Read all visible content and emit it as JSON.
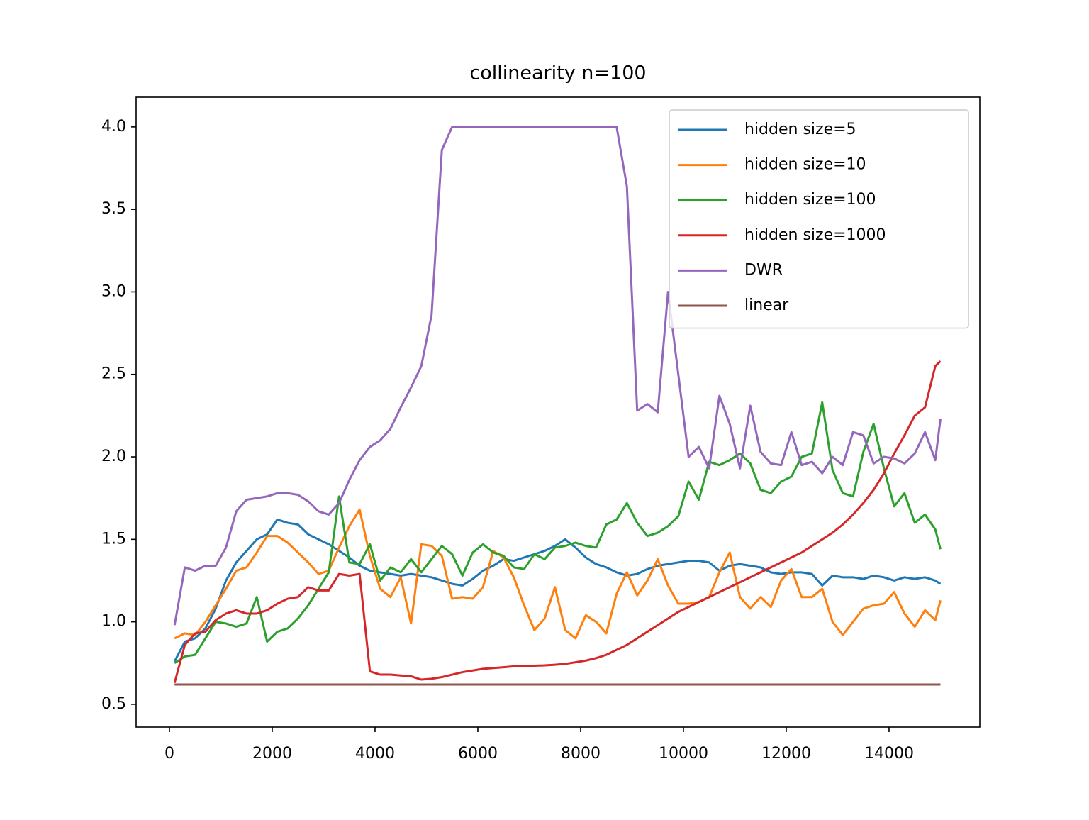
{
  "chart_data": {
    "type": "line",
    "title": "collinearity n=100",
    "x": [
      100,
      300,
      500,
      700,
      900,
      1100,
      1300,
      1500,
      1700,
      1900,
      2100,
      2300,
      2500,
      2700,
      2900,
      3100,
      3300,
      3500,
      3700,
      3900,
      4100,
      4300,
      4500,
      4700,
      4900,
      5100,
      5300,
      5500,
      5700,
      5900,
      6100,
      6300,
      6500,
      6700,
      6900,
      7100,
      7300,
      7500,
      7700,
      7900,
      8100,
      8300,
      8500,
      8700,
      8900,
      9100,
      9300,
      9500,
      9700,
      9900,
      10100,
      10300,
      10500,
      10700,
      10900,
      11100,
      11300,
      11500,
      11700,
      11900,
      12100,
      12300,
      12500,
      12700,
      12900,
      13100,
      13300,
      13500,
      13700,
      13900,
      14100,
      14300,
      14500,
      14700,
      14900,
      15000
    ],
    "series": [
      {
        "name": "hidden size=5",
        "color": "#1f77b4",
        "values": [
          0.76,
          0.88,
          0.9,
          0.96,
          1.08,
          1.25,
          1.36,
          1.43,
          1.5,
          1.53,
          1.62,
          1.6,
          1.59,
          1.53,
          1.5,
          1.47,
          1.43,
          1.39,
          1.34,
          1.31,
          1.3,
          1.29,
          1.28,
          1.29,
          1.28,
          1.27,
          1.25,
          1.23,
          1.22,
          1.26,
          1.31,
          1.34,
          1.38,
          1.37,
          1.39,
          1.41,
          1.43,
          1.46,
          1.5,
          1.45,
          1.39,
          1.35,
          1.33,
          1.3,
          1.28,
          1.29,
          1.32,
          1.34,
          1.35,
          1.36,
          1.37,
          1.37,
          1.36,
          1.31,
          1.34,
          1.35,
          1.34,
          1.33,
          1.3,
          1.29,
          1.3,
          1.3,
          1.29,
          1.22,
          1.28,
          1.27,
          1.27,
          1.26,
          1.28,
          1.27,
          1.25,
          1.27,
          1.26,
          1.27,
          1.25,
          1.23
        ]
      },
      {
        "name": "hidden size=10",
        "color": "#ff7f0e",
        "values": [
          0.9,
          0.93,
          0.92,
          1.0,
          1.1,
          1.2,
          1.31,
          1.33,
          1.42,
          1.52,
          1.52,
          1.48,
          1.42,
          1.36,
          1.29,
          1.31,
          1.45,
          1.58,
          1.68,
          1.4,
          1.2,
          1.15,
          1.27,
          0.99,
          1.47,
          1.46,
          1.4,
          1.14,
          1.15,
          1.14,
          1.21,
          1.43,
          1.39,
          1.27,
          1.1,
          0.95,
          1.02,
          1.21,
          0.95,
          0.9,
          1.04,
          1.0,
          0.93,
          1.17,
          1.3,
          1.16,
          1.25,
          1.38,
          1.22,
          1.11,
          1.11,
          1.12,
          1.15,
          1.3,
          1.42,
          1.15,
          1.08,
          1.15,
          1.09,
          1.25,
          1.32,
          1.15,
          1.15,
          1.2,
          1.0,
          0.92,
          1.0,
          1.08,
          1.1,
          1.11,
          1.18,
          1.05,
          0.97,
          1.07,
          1.01,
          1.13
        ]
      },
      {
        "name": "hidden size=100",
        "color": "#2ca02c",
        "values": [
          0.75,
          0.79,
          0.8,
          0.9,
          1.0,
          0.99,
          0.97,
          0.99,
          1.15,
          0.88,
          0.94,
          0.96,
          1.02,
          1.1,
          1.2,
          1.3,
          1.76,
          1.36,
          1.35,
          1.47,
          1.25,
          1.33,
          1.3,
          1.38,
          1.3,
          1.38,
          1.46,
          1.41,
          1.28,
          1.42,
          1.47,
          1.42,
          1.4,
          1.33,
          1.32,
          1.41,
          1.38,
          1.45,
          1.46,
          1.48,
          1.46,
          1.45,
          1.59,
          1.62,
          1.72,
          1.6,
          1.52,
          1.54,
          1.58,
          1.64,
          1.85,
          1.74,
          1.97,
          1.95,
          1.98,
          2.02,
          1.96,
          1.8,
          1.78,
          1.85,
          1.88,
          2.0,
          2.02,
          2.33,
          1.92,
          1.78,
          1.76,
          2.03,
          2.2,
          1.93,
          1.7,
          1.78,
          1.6,
          1.65,
          1.56,
          1.44
        ]
      },
      {
        "name": "hidden size=1000",
        "color": "#d62728",
        "values": [
          0.63,
          0.86,
          0.93,
          0.94,
          1.01,
          1.05,
          1.07,
          1.05,
          1.05,
          1.07,
          1.11,
          1.14,
          1.15,
          1.21,
          1.19,
          1.19,
          1.29,
          1.28,
          1.29,
          0.7,
          0.68,
          0.68,
          0.675,
          0.67,
          0.65,
          0.655,
          0.665,
          0.68,
          0.695,
          0.705,
          0.715,
          0.72,
          0.725,
          0.73,
          0.732,
          0.734,
          0.736,
          0.74,
          0.745,
          0.755,
          0.765,
          0.78,
          0.8,
          0.83,
          0.86,
          0.9,
          0.94,
          0.98,
          1.02,
          1.06,
          1.09,
          1.12,
          1.15,
          1.18,
          1.21,
          1.24,
          1.27,
          1.3,
          1.33,
          1.36,
          1.39,
          1.42,
          1.46,
          1.5,
          1.54,
          1.59,
          1.65,
          1.72,
          1.8,
          1.9,
          2.02,
          2.13,
          2.25,
          2.3,
          2.55,
          2.58
        ]
      },
      {
        "name": "DWR",
        "color": "#9467bd",
        "values": [
          0.98,
          1.33,
          1.31,
          1.34,
          1.34,
          1.45,
          1.67,
          1.74,
          1.75,
          1.76,
          1.78,
          1.78,
          1.77,
          1.73,
          1.67,
          1.65,
          1.72,
          1.86,
          1.98,
          2.06,
          2.1,
          2.17,
          2.3,
          2.42,
          2.55,
          2.86,
          3.86,
          4.0,
          4.0,
          4.0,
          4.0,
          4.0,
          4.0,
          4.0,
          4.0,
          4.0,
          4.0,
          4.0,
          4.0,
          4.0,
          4.0,
          4.0,
          4.0,
          4.0,
          3.64,
          2.28,
          2.32,
          2.27,
          3.0,
          2.5,
          2.0,
          2.06,
          1.93,
          2.37,
          2.2,
          1.93,
          2.31,
          2.03,
          1.96,
          1.95,
          2.15,
          1.95,
          1.97,
          1.9,
          2.0,
          1.95,
          2.15,
          2.13,
          1.96,
          2.0,
          1.99,
          1.96,
          2.02,
          2.15,
          1.98,
          2.23
        ]
      },
      {
        "name": "linear",
        "color": "#8c564b",
        "values": [
          0.62,
          0.62,
          0.62,
          0.62,
          0.62,
          0.62,
          0.62,
          0.62,
          0.62,
          0.62,
          0.62,
          0.62,
          0.62,
          0.62,
          0.62,
          0.62,
          0.62,
          0.62,
          0.62,
          0.62,
          0.62,
          0.62,
          0.62,
          0.62,
          0.62,
          0.62,
          0.62,
          0.62,
          0.62,
          0.62,
          0.62,
          0.62,
          0.62,
          0.62,
          0.62,
          0.62,
          0.62,
          0.62,
          0.62,
          0.62,
          0.62,
          0.62,
          0.62,
          0.62,
          0.62,
          0.62,
          0.62,
          0.62,
          0.62,
          0.62,
          0.62,
          0.62,
          0.62,
          0.62,
          0.62,
          0.62,
          0.62,
          0.62,
          0.62,
          0.62,
          0.62,
          0.62,
          0.62,
          0.62,
          0.62,
          0.62,
          0.62,
          0.62,
          0.62,
          0.62,
          0.62,
          0.62,
          0.62,
          0.62,
          0.62,
          0.62
        ]
      }
    ],
    "xlim": [
      -648,
      15766
    ],
    "ylim": [
      0.362,
      4.18
    ],
    "xticks": [
      0,
      2000,
      4000,
      6000,
      8000,
      10000,
      12000,
      14000
    ],
    "yticks": [
      0.5,
      {
        "value": 1,
        "label": "1.0"
      },
      1.5,
      {
        "value": 2,
        "label": "2.0"
      },
      2.5,
      {
        "value": 3,
        "label": "3.0"
      },
      3.5,
      {
        "value": 4,
        "label": "4.0"
      }
    ],
    "grid": false,
    "legend": "upper right"
  }
}
